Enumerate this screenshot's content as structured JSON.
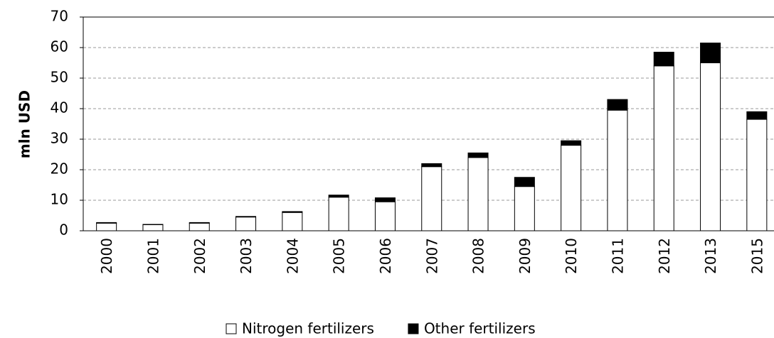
{
  "chart_data": {
    "type": "stacked-bar",
    "y_label": "mln USD",
    "categories": [
      "2000",
      "2001",
      "2002",
      "2003",
      "2004",
      "2005",
      "2006",
      "2007",
      "2008",
      "2009",
      "2010",
      "2011",
      "2012",
      "2013",
      "2015"
    ],
    "series": [
      {
        "name": "Nitrogen fertilizers",
        "color": "#ffffff",
        "values": [
          2.5,
          2,
          2.5,
          4.5,
          6,
          11,
          9.5,
          21,
          24,
          14.5,
          28,
          39.5,
          54,
          55,
          36.5
        ]
      },
      {
        "name": "Other fertilizers",
        "color": "#000000",
        "values": [
          0.2,
          0.1,
          0.2,
          0.2,
          0.3,
          0.7,
          1.3,
          1,
          1.5,
          3,
          1.5,
          3.5,
          4.5,
          6.5,
          2.5
        ]
      }
    ],
    "ylim": [
      0,
      70
    ],
    "yticks": [
      0,
      10,
      20,
      30,
      40,
      50,
      60,
      70
    ],
    "grid": true
  }
}
